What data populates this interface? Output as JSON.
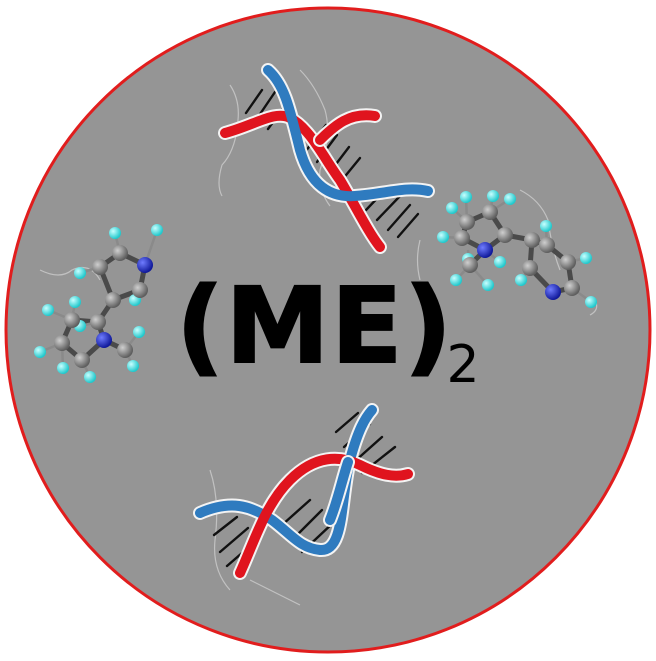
{
  "logo": {
    "title": "(ME)",
    "subscript": "2"
  },
  "colors": {
    "background": "#ffffff",
    "disc_fill": "#959595",
    "disc_border": "#e11d1d",
    "dna_red": "#e0141e",
    "dna_blue": "#2f7bbf",
    "carbon_atom": "#7c7c7c",
    "nitrogen_atom": "#1f2fd6",
    "hydrogen_atom": "#3fe7e7",
    "text": "#000000"
  },
  "icons": [
    "dna-double-helix-icon",
    "nicotine-molecule-icon"
  ]
}
